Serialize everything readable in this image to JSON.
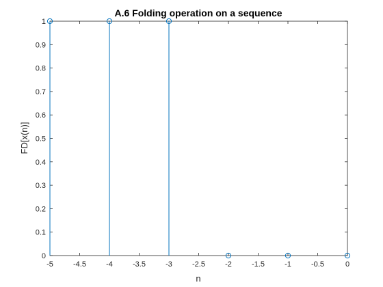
{
  "chart_data": {
    "type": "stem",
    "title": "A.6 Folding operation on a sequence",
    "xlabel": "n",
    "ylabel": "FD[x(n)]",
    "xlim": [
      -5,
      0
    ],
    "ylim": [
      0,
      1
    ],
    "x": [
      -5,
      -4,
      -3,
      -2,
      -1,
      0
    ],
    "values": [
      1,
      1,
      1,
      0,
      0,
      0
    ],
    "xticks": [
      "-5",
      "-4.5",
      "-4",
      "-3.5",
      "-3",
      "-2.5",
      "-2",
      "-1.5",
      "-1",
      "-0.5",
      "0"
    ],
    "yticks": [
      "0",
      "0.1",
      "0.2",
      "0.3",
      "0.4",
      "0.5",
      "0.6",
      "0.7",
      "0.8",
      "0.9",
      "1"
    ],
    "grid": false,
    "box": true,
    "series_color": "#0072BD",
    "axis_color": "#262626"
  }
}
